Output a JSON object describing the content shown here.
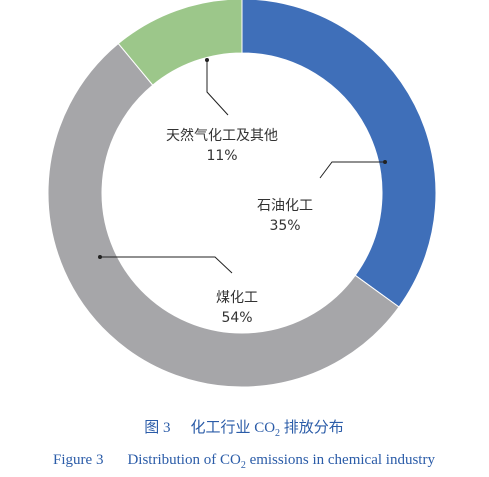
{
  "chart_data": {
    "type": "donut",
    "categories": [
      "石油化工",
      "煤化工",
      "天然气化工及其他"
    ],
    "values": [
      35,
      54,
      11
    ],
    "value_labels": [
      "35%",
      "54%",
      "11%"
    ],
    "colors": [
      "#3f6fb9",
      "#a6a6a9",
      "#9cc78a"
    ],
    "caption_zh": {
      "number": "图 3",
      "before": "化工行业 CO",
      "sub": "2",
      "after": " 排放分布"
    },
    "caption_en": {
      "number": "Figure 3",
      "before": "Distribution of CO",
      "sub": "2",
      "after": " emissions in chemical industry"
    }
  }
}
